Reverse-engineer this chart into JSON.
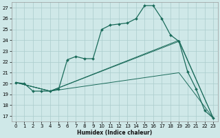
{
  "title": "",
  "xlabel": "Humidex (Indice chaleur)",
  "bg_color": "#cfe8e8",
  "grid_color": "#aacccc",
  "line_color": "#1a6b5a",
  "xlim": [
    -0.5,
    23.5
  ],
  "ylim": [
    16.5,
    27.5
  ],
  "yticks": [
    17,
    18,
    19,
    20,
    21,
    22,
    23,
    24,
    25,
    26,
    27
  ],
  "xticks": [
    0,
    1,
    2,
    3,
    4,
    5,
    6,
    7,
    8,
    9,
    10,
    11,
    12,
    13,
    14,
    15,
    16,
    17,
    18,
    19,
    20,
    21,
    22,
    23
  ],
  "line_main": {
    "x": [
      0,
      1,
      2,
      3,
      4,
      5,
      6,
      7,
      8,
      9,
      10,
      11,
      12,
      13,
      14,
      15,
      16,
      17,
      18,
      19,
      20,
      21,
      22,
      23
    ],
    "y": [
      20.1,
      20.0,
      19.3,
      19.3,
      19.3,
      19.5,
      22.2,
      22.5,
      22.3,
      22.3,
      25.0,
      25.4,
      25.5,
      25.6,
      26.0,
      27.2,
      27.2,
      26.0,
      24.5,
      23.9,
      21.1,
      19.5,
      17.5,
      16.8
    ]
  },
  "line2": {
    "x": [
      0,
      4,
      19,
      23
    ],
    "y": [
      20.1,
      19.3,
      21.0,
      16.8
    ]
  },
  "line3": {
    "x": [
      0,
      4,
      19,
      23
    ],
    "y": [
      20.1,
      19.3,
      23.9,
      16.8
    ]
  },
  "line4": {
    "x": [
      0,
      4,
      19,
      23
    ],
    "y": [
      20.1,
      19.3,
      24.0,
      16.8
    ]
  }
}
